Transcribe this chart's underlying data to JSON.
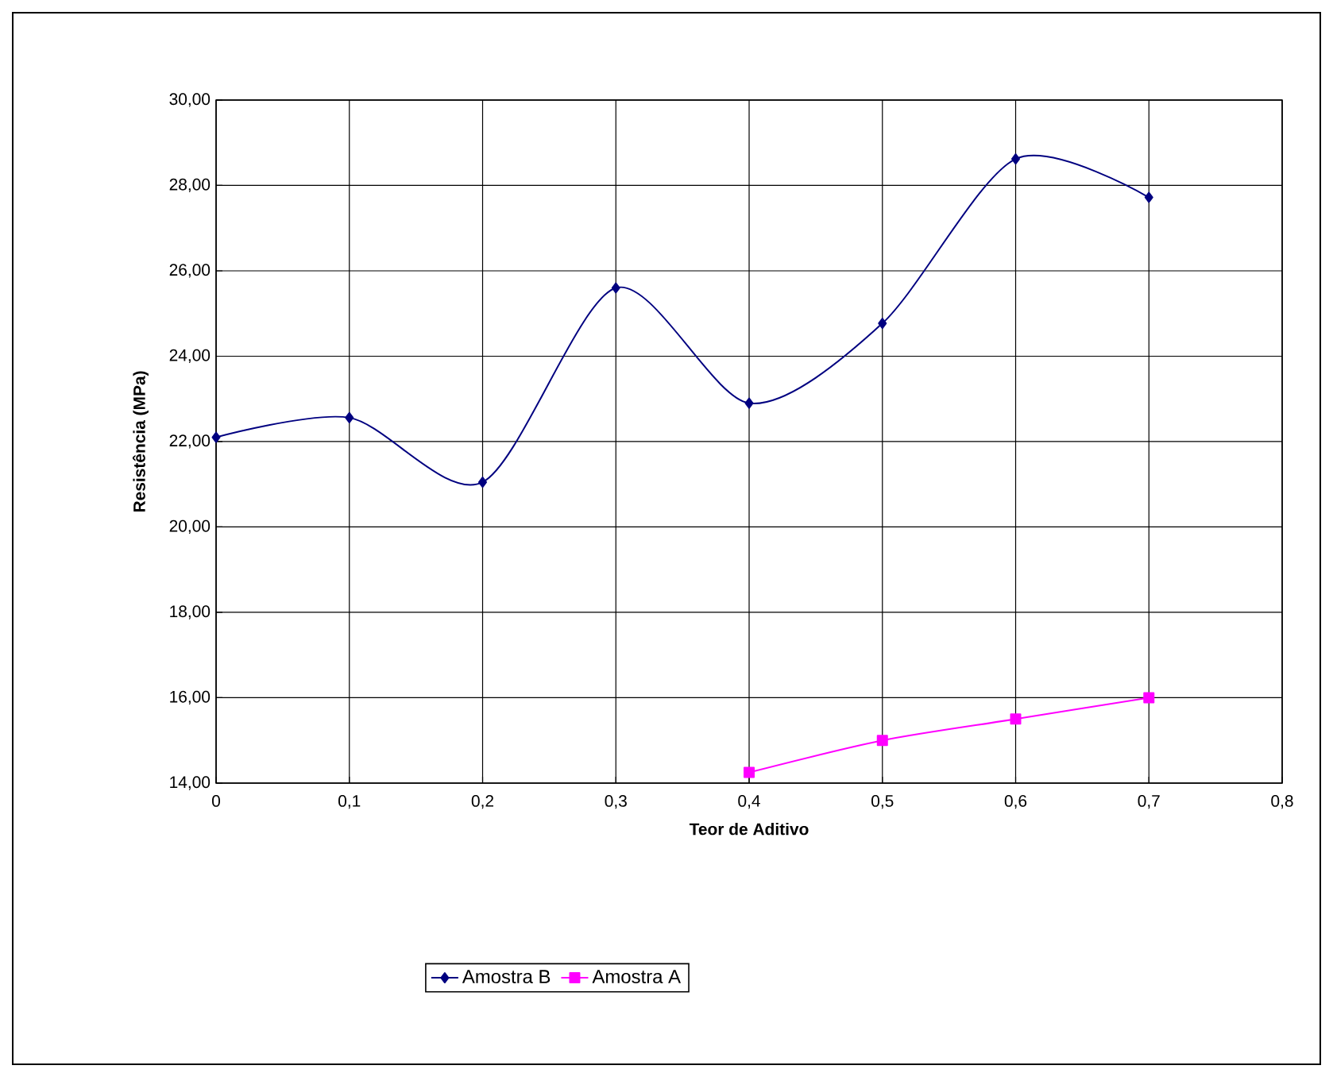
{
  "chart_data": {
    "type": "line",
    "xlabel": "Teor de Aditivo",
    "ylabel": "Resistência (MPa)",
    "xlim": [
      0,
      0.8
    ],
    "ylim": [
      14,
      30
    ],
    "xticks": [
      {
        "value": 0,
        "label": "0"
      },
      {
        "value": 0.1,
        "label": "0,1"
      },
      {
        "value": 0.2,
        "label": "0,2"
      },
      {
        "value": 0.3,
        "label": "0,3"
      },
      {
        "value": 0.4,
        "label": "0,4"
      },
      {
        "value": 0.5,
        "label": "0,5"
      },
      {
        "value": 0.6,
        "label": "0,6"
      },
      {
        "value": 0.7,
        "label": "0,7"
      },
      {
        "value": 0.8,
        "label": "0,8"
      }
    ],
    "yticks": [
      {
        "value": 14,
        "label": "14,00"
      },
      {
        "value": 16,
        "label": "16,00"
      },
      {
        "value": 18,
        "label": "18,00"
      },
      {
        "value": 20,
        "label": "20,00"
      },
      {
        "value": 22,
        "label": "22,00"
      },
      {
        "value": 24,
        "label": "24,00"
      },
      {
        "value": 26,
        "label": "26,00"
      },
      {
        "value": 28,
        "label": "28,00"
      },
      {
        "value": 30,
        "label": "30,00"
      }
    ],
    "grid": true,
    "legend": "bottom",
    "series": [
      {
        "name": "Amostra B",
        "color": "#000080",
        "marker": "diamond",
        "x": [
          0,
          0.1,
          0.2,
          0.3,
          0.4,
          0.5,
          0.6,
          0.7
        ],
        "values": [
          22.1,
          22.56,
          21.05,
          25.6,
          22.9,
          24.77,
          28.62,
          27.72
        ]
      },
      {
        "name": "Amostra A",
        "color": "#ff00ff",
        "marker": "square",
        "x": [
          0.4,
          0.5,
          0.6,
          0.7
        ],
        "values": [
          14.25,
          15.0,
          15.5,
          16.0
        ]
      }
    ]
  }
}
